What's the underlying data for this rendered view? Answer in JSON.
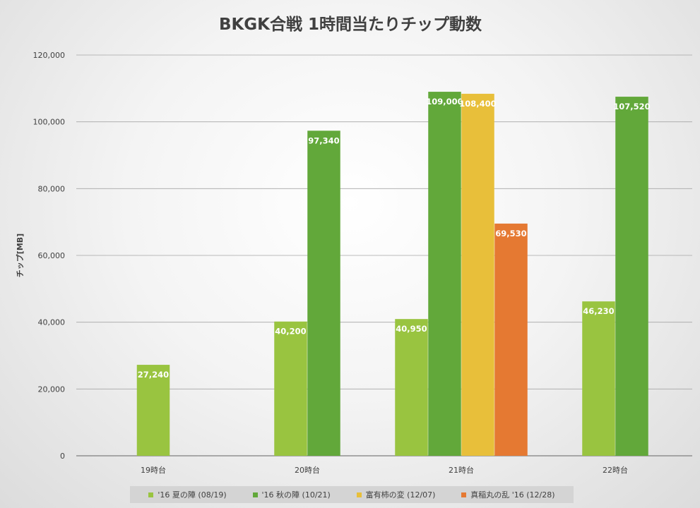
{
  "chart_data": {
    "type": "bar",
    "title": "BKGK合戦 1時間当たりチップ動数",
    "xlabel": "",
    "ylabel": "チップ[MB]",
    "ylim": [
      0,
      120000
    ],
    "yticks": [
      0,
      20000,
      40000,
      60000,
      80000,
      100000,
      120000
    ],
    "ytick_labels": [
      "0",
      "20,000",
      "40,000",
      "60,000",
      "80,000",
      "100,000",
      "120,000"
    ],
    "categories": [
      "19時台",
      "20時台",
      "21時台",
      "22時台"
    ],
    "legend_position": "bottom",
    "series": [
      {
        "name": "'16 夏の陣 (08/19)",
        "color": "#99c440",
        "values": [
          27240,
          40200,
          40950,
          46230
        ],
        "labels": [
          "27,240",
          "40,200",
          "40,950",
          "46,230"
        ]
      },
      {
        "name": "'16 秋の陣 (10/21)",
        "color": "#62a83a",
        "values": [
          null,
          97340,
          109000,
          107520
        ],
        "labels": [
          null,
          "97,340",
          "109,000",
          "107,520"
        ]
      },
      {
        "name": "富有柿の変 (12/07)",
        "color": "#e8bf3a",
        "values": [
          null,
          null,
          108400,
          null
        ],
        "labels": [
          null,
          null,
          "108,400",
          null
        ]
      },
      {
        "name": "真稲丸の乱 '16 (12/28)",
        "color": "#e57932",
        "values": [
          null,
          null,
          69530,
          null
        ],
        "labels": [
          null,
          null,
          "69,530",
          null
        ]
      }
    ]
  }
}
